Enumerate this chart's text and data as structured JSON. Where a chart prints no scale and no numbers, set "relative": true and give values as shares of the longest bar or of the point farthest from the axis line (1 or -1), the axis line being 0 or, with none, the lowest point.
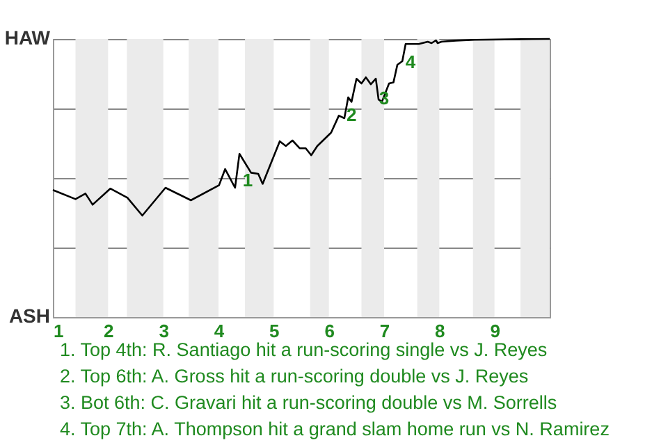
{
  "chart_data": {
    "type": "line",
    "relative": true,
    "x": [
      1,
      1.41,
      1.59,
      1.72,
      2.04,
      2.35,
      2.62,
      3.04,
      3.5,
      4.01,
      4.12,
      4.3,
      4.38,
      4.59,
      4.72,
      4.8,
      5.11,
      5.22,
      5.34,
      5.47,
      5.58,
      5.68,
      5.79,
      6.04,
      6.18,
      6.28,
      6.35,
      6.41,
      6.5,
      6.59,
      6.67,
      6.76,
      6.85,
      6.9,
      6.96,
      7.09,
      7.17,
      7.24,
      7.33,
      7.39,
      7.63,
      7.79,
      7.86,
      7.94,
      7.97,
      8.04,
      8.3,
      8.64,
      9.48,
      10
    ],
    "series": [
      {
        "color": "#000000",
        "values": [
          0.457,
          0.424,
          0.444,
          0.404,
          0.462,
          0.429,
          0.365,
          0.465,
          0.42,
          0.474,
          0.532,
          0.465,
          0.587,
          0.519,
          0.515,
          0.479,
          0.632,
          0.615,
          0.635,
          0.607,
          0.607,
          0.582,
          0.615,
          0.663,
          0.724,
          0.715,
          0.79,
          0.774,
          0.857,
          0.84,
          0.862,
          0.837,
          0.857,
          0.782,
          0.774,
          0.84,
          0.844,
          0.907,
          0.92,
          0.982,
          0.982,
          0.99,
          0.985,
          0.995,
          0.985,
          0.99,
          0.994,
          0.997,
          0.999,
          1
        ]
      }
    ],
    "xlim": [
      1,
      10
    ],
    "xticks": [
      1,
      2,
      3,
      4,
      5,
      6,
      7,
      8,
      9
    ],
    "grid": "y",
    "bands": [
      {
        "axis": "x",
        "from": 1.41,
        "to": 2,
        "color": "#ebebeb"
      },
      {
        "axis": "x",
        "from": 2.34,
        "to": 3,
        "color": "#ebebeb"
      },
      {
        "axis": "x",
        "from": 3.46,
        "to": 4,
        "color": "#ebebeb"
      },
      {
        "axis": "x",
        "from": 4.48,
        "to": 5,
        "color": "#ebebeb"
      },
      {
        "axis": "x",
        "from": 5.66,
        "to": 6,
        "color": "#ebebeb"
      },
      {
        "axis": "x",
        "from": 6.59,
        "to": 7,
        "color": "#ebebeb"
      },
      {
        "axis": "x",
        "from": 7.6,
        "to": 8,
        "color": "#ebebeb"
      },
      {
        "axis": "x",
        "from": 8.61,
        "to": 9,
        "color": "#ebebeb"
      },
      {
        "axis": "x",
        "from": 9.47,
        "to": 10,
        "color": "#ebebeb"
      }
    ],
    "annotations": [
      "HAW",
      "ASH",
      {
        "text": "1",
        "x": 4.53,
        "y": 0.49
      },
      {
        "text": "2",
        "x": 6.41,
        "y": 0.725
      },
      {
        "text": "3",
        "x": 7.0,
        "y": 0.785
      },
      {
        "text": "4",
        "x": 7.48,
        "y": 0.915
      },
      "1. Top 4th: R. Santiago hit a run-scoring single vs J. Reyes",
      "2. Top 6th: A. Gross hit a run-scoring double vs J. Reyes",
      "3. Bot 6th: C. Gravari hit a run-scoring double vs M. Sorrells",
      "4. Top 7th: A. Thompson hit a grand slam home run vs N. Ramirez"
    ]
  }
}
